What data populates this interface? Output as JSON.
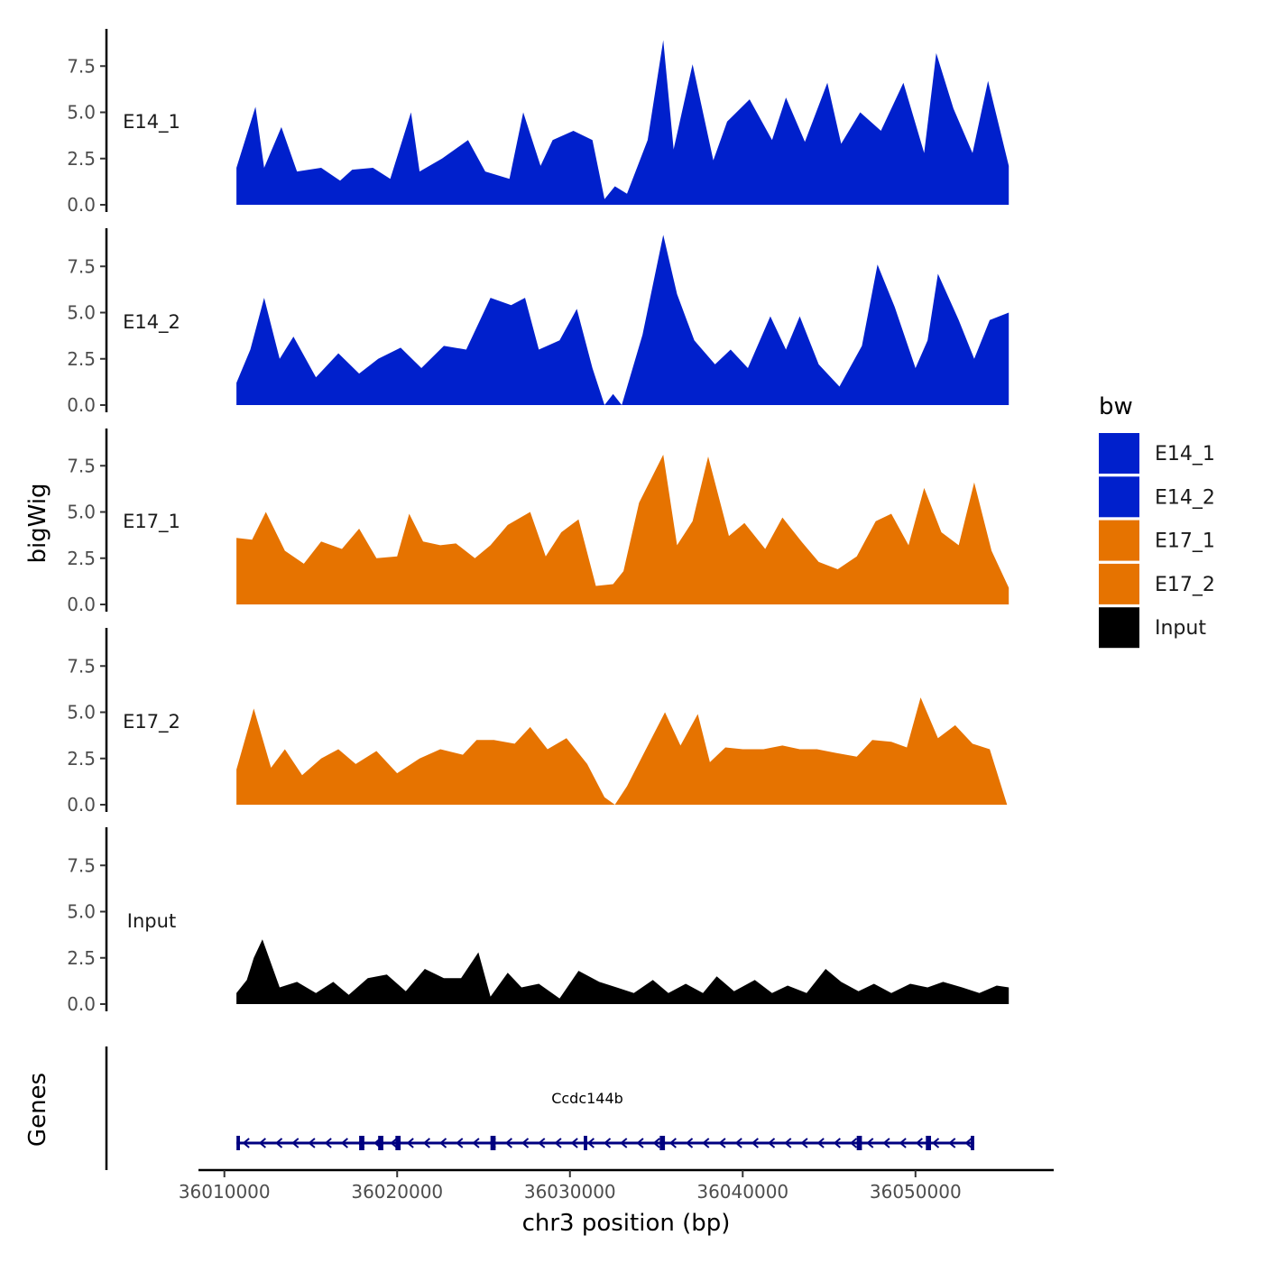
{
  "chart_data": {
    "type": "area",
    "layout": "stacked tracks, shared x axis",
    "xlabel": "chr3 position (bp)",
    "ylabel": "bigWig",
    "genes_label": "Genes",
    "xlim": [
      36008500,
      36058000
    ],
    "x_ticks": [
      36010000,
      36020000,
      36030000,
      36040000,
      36050000
    ],
    "x_tick_labels": [
      "36010000",
      "36020000",
      "36030000",
      "36040000",
      "36050000"
    ],
    "ylim": [
      0,
      9.5
    ],
    "y_ticks": [
      0,
      2.5,
      5,
      7.5
    ],
    "y_tick_labels": [
      "0.0",
      "2.5",
      "5.0",
      "7.5"
    ],
    "legend": {
      "title": "bw",
      "position": "right",
      "entries": [
        {
          "name": "E14_1",
          "color": "#0020cc"
        },
        {
          "name": "E14_2",
          "color": "#0020cc"
        },
        {
          "name": "E17_1",
          "color": "#e67300"
        },
        {
          "name": "E17_2",
          "color": "#e67300"
        },
        {
          "name": "Input",
          "color": "#000000"
        }
      ]
    },
    "series": [
      {
        "name": "E14_1",
        "color": "#0020cc",
        "x": [
          36010700,
          36011800,
          36012300,
          36013300,
          36014200,
          36015600,
          36016700,
          36017400,
          36018600,
          36019600,
          36020800,
          36021300,
          36022600,
          36024100,
          36025100,
          36026500,
          36027300,
          36028300,
          36029000,
          36030200,
          36031300,
          36032000,
          36032600,
          36033300,
          36034500,
          36035400,
          36036000,
          36037100,
          36038300,
          36039100,
          36040400,
          36041700,
          36042500,
          36043600,
          36044900,
          36045700,
          36046800,
          36048000,
          36049300,
          36050500,
          36051200,
          36052200,
          36053300,
          36054200,
          36055400
        ],
        "values": [
          2.0,
          5.3,
          2.0,
          4.2,
          1.8,
          2.0,
          1.3,
          1.9,
          2.0,
          1.4,
          5.0,
          1.8,
          2.5,
          3.5,
          1.8,
          1.4,
          5.0,
          2.1,
          3.5,
          4.0,
          3.5,
          0.3,
          1.0,
          0.6,
          3.5,
          8.9,
          3.0,
          7.6,
          2.4,
          4.5,
          5.7,
          3.5,
          5.8,
          3.4,
          6.6,
          3.3,
          5.0,
          4.0,
          6.6,
          2.8,
          8.2,
          5.2,
          2.8,
          6.7,
          2.1
        ]
      },
      {
        "name": "E14_2",
        "color": "#0020cc",
        "x": [
          36010700,
          36011500,
          36012300,
          36013200,
          36014000,
          36015300,
          36016600,
          36017800,
          36018900,
          36020200,
          36021400,
          36022700,
          36024000,
          36025400,
          36026600,
          36027400,
          36028200,
          36029400,
          36030400,
          36031300,
          36032000,
          36032500,
          36033000,
          36034200,
          36035400,
          36036200,
          36037200,
          36038400,
          36039300,
          36040300,
          36041600,
          36042500,
          36043300,
          36044400,
          36045600,
          36046900,
          36047800,
          36048800,
          36050000,
          36050700,
          36051300,
          36052500,
          36053400,
          36054300,
          36055400
        ],
        "values": [
          1.2,
          3.0,
          5.8,
          2.5,
          3.7,
          1.5,
          2.8,
          1.7,
          2.5,
          3.1,
          2.0,
          3.2,
          3.0,
          5.8,
          5.4,
          5.8,
          3.0,
          3.5,
          5.2,
          2.0,
          0.0,
          0.6,
          0.0,
          3.8,
          9.2,
          6.0,
          3.5,
          2.2,
          3.0,
          2.0,
          4.8,
          3.0,
          4.8,
          2.2,
          1.0,
          3.2,
          7.6,
          5.3,
          2.0,
          3.5,
          7.1,
          4.6,
          2.5,
          4.6,
          5.0
        ]
      },
      {
        "name": "E17_1",
        "color": "#e67300",
        "x": [
          36010700,
          36011600,
          36012400,
          36013500,
          36014600,
          36015600,
          36016800,
          36017800,
          36018800,
          36020000,
          36020700,
          36021500,
          36022500,
          36023400,
          36024500,
          36025400,
          36026400,
          36027700,
          36028600,
          36029500,
          36030500,
          36031500,
          36032500,
          36033100,
          36034000,
          36035400,
          36036200,
          36037100,
          36038000,
          36039200,
          36040100,
          36041300,
          36042300,
          36043400,
          36044400,
          36045500,
          36046600,
          36047700,
          36048600,
          36049600,
          36050500,
          36051500,
          36052500,
          36053400,
          36054400,
          36055400
        ],
        "values": [
          3.6,
          3.5,
          5.0,
          2.9,
          2.2,
          3.4,
          3.0,
          4.1,
          2.5,
          2.6,
          4.9,
          3.4,
          3.2,
          3.3,
          2.5,
          3.2,
          4.3,
          5.0,
          2.6,
          3.9,
          4.6,
          1.0,
          1.1,
          1.8,
          5.5,
          8.1,
          3.2,
          4.5,
          8.0,
          3.7,
          4.4,
          3.0,
          4.7,
          3.4,
          2.3,
          1.9,
          2.6,
          4.5,
          4.9,
          3.2,
          6.3,
          3.9,
          3.2,
          6.6,
          2.9,
          0.9
        ]
      },
      {
        "name": "E17_2",
        "color": "#e67300",
        "x": [
          36010700,
          36011700,
          36012700,
          36013500,
          36014500,
          36015600,
          36016600,
          36017600,
          36018800,
          36020000,
          36021300,
          36022500,
          36023800,
          36024600,
          36025600,
          36026800,
          36027700,
          36028700,
          36029800,
          36031000,
          36032000,
          36032600,
          36033300,
          36034400,
          36035500,
          36036400,
          36037400,
          36038100,
          36039000,
          36040000,
          36041200,
          36042300,
          36043300,
          36044300,
          36045400,
          36046600,
          36047500,
          36048600,
          36049500,
          36050300,
          36051300,
          36052300,
          36053300,
          36054300,
          36055300
        ],
        "values": [
          1.9,
          5.2,
          2.0,
          3.0,
          1.6,
          2.5,
          3.0,
          2.2,
          2.9,
          1.7,
          2.5,
          3.0,
          2.7,
          3.5,
          3.5,
          3.3,
          4.2,
          3.0,
          3.6,
          2.2,
          0.4,
          0.0,
          1.0,
          3.0,
          5.0,
          3.2,
          4.9,
          2.3,
          3.1,
          3.0,
          3.0,
          3.2,
          3.0,
          3.0,
          2.8,
          2.6,
          3.5,
          3.4,
          3.1,
          5.8,
          3.6,
          4.3,
          3.3,
          3.0,
          0.0
        ]
      },
      {
        "name": "Input",
        "color": "#000000",
        "x": [
          36010700,
          36011300,
          36011700,
          36012200,
          36013200,
          36014200,
          36015300,
          36016300,
          36017200,
          36018300,
          36019400,
          36020500,
          36021600,
          36022700,
          36023700,
          36024700,
          36025400,
          36026400,
          36027200,
          36028200,
          36029400,
          36030500,
          36031700,
          36032700,
          36033700,
          36034800,
          36035700,
          36036700,
          36037700,
          36038500,
          36039500,
          36040700,
          36041700,
          36042600,
          36043700,
          36044800,
          36045700,
          36046700,
          36047600,
          36048600,
          36049700,
          36050700,
          36051600,
          36052700,
          36053700,
          36054700,
          36055400
        ],
        "values": [
          0.6,
          1.3,
          2.5,
          3.5,
          0.9,
          1.2,
          0.6,
          1.2,
          0.5,
          1.4,
          1.6,
          0.7,
          1.9,
          1.4,
          1.4,
          2.8,
          0.4,
          1.7,
          0.9,
          1.1,
          0.3,
          1.8,
          1.2,
          0.9,
          0.6,
          1.3,
          0.6,
          1.1,
          0.6,
          1.5,
          0.7,
          1.3,
          0.6,
          1.0,
          0.6,
          1.9,
          1.2,
          0.7,
          1.1,
          0.6,
          1.1,
          0.9,
          1.2,
          0.9,
          0.6,
          1.0,
          0.9
        ]
      }
    ],
    "genes": [
      {
        "name": "Ccdc144b",
        "strand": "-",
        "start": 36010700,
        "end": 36053400,
        "exons": [
          [
            36010700,
            36010900
          ],
          [
            36017800,
            36018100
          ],
          [
            36018900,
            36019200
          ],
          [
            36019900,
            36020200
          ],
          [
            36025400,
            36025700
          ],
          [
            36030800,
            36031000
          ],
          [
            36035200,
            36035500
          ],
          [
            36046600,
            36046900
          ],
          [
            36050600,
            36050900
          ],
          [
            36053200,
            36053400
          ]
        ]
      }
    ]
  }
}
